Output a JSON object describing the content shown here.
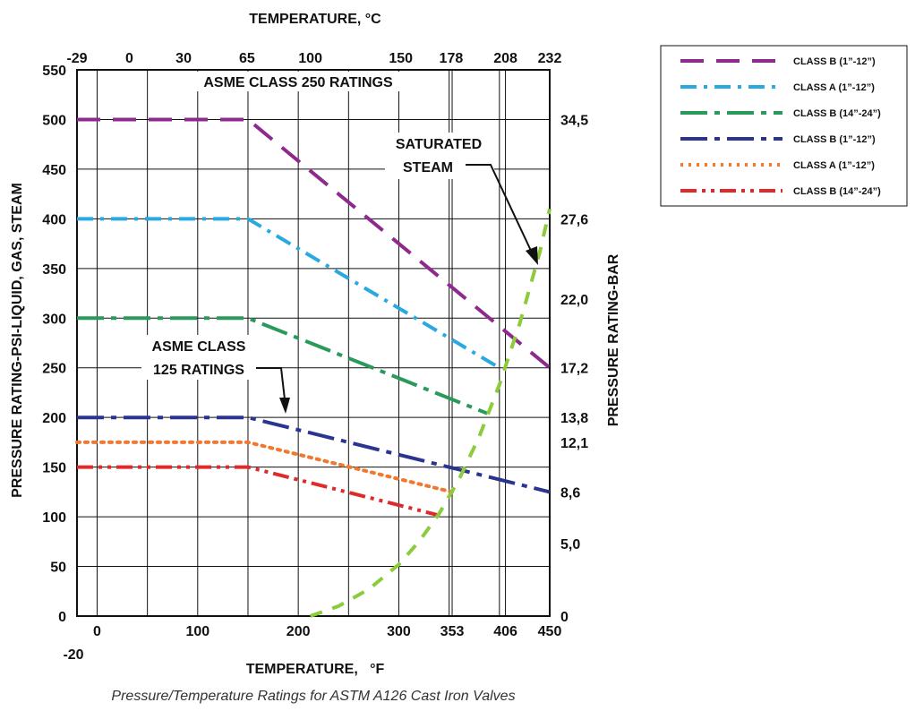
{
  "chart_data": {
    "type": "line",
    "caption": "Pressure/Temperature Ratings for ASTM A126 Cast Iron Valves",
    "xlabel": "TEMPERATURE,   °F",
    "x2label": "TEMPERATURE, °C",
    "ylabel": "PRESSURE RATING-PSI-LIQUID, GAS, STEAM",
    "y2label": "PRESSURE RATING-BAR",
    "xlim": [
      -20,
      450
    ],
    "ylim": [
      0,
      550
    ],
    "x_ticks": [
      0,
      100,
      200,
      300,
      353,
      406,
      450
    ],
    "x_extra_label": "-20",
    "y_ticks": [
      0,
      50,
      100,
      150,
      200,
      250,
      300,
      350,
      400,
      450,
      500,
      550
    ],
    "x2_ticks": [
      {
        "label": "-29",
        "at_f": -20
      },
      {
        "label": "0",
        "at_f": 32
      },
      {
        "label": "30",
        "at_f": 86
      },
      {
        "label": "65",
        "at_f": 149
      },
      {
        "label": "100",
        "at_f": 212
      },
      {
        "label": "150",
        "at_f": 302
      },
      {
        "label": "178",
        "at_f": 352
      },
      {
        "label": "208",
        "at_f": 406
      },
      {
        "label": "232",
        "at_f": 450
      }
    ],
    "y2_ticks": [
      {
        "label": "34,5",
        "at_psi": 500
      },
      {
        "label": "27,6",
        "at_psi": 400
      },
      {
        "label": "22,0",
        "at_psi": 319
      },
      {
        "label": "17,2",
        "at_psi": 250
      },
      {
        "label": "13,8",
        "at_psi": 200
      },
      {
        "label": "12,1",
        "at_psi": 175
      },
      {
        "label": "8,6",
        "at_psi": 125
      },
      {
        "label": "5,0",
        "at_psi": 73
      },
      {
        "label": "0",
        "at_psi": 0
      }
    ],
    "annotations": {
      "class250": "ASME CLASS 250 RATINGS",
      "class125_line1": "ASME CLASS",
      "class125_line2": "125 RATINGS",
      "steam_line1": "SATURATED",
      "steam_line2": "STEAM"
    },
    "series": [
      {
        "name": "CLASS B (1”-12”)",
        "color": "#8e2a8e",
        "dash": "long-dash",
        "x": [
          -20,
          150,
          450
        ],
        "y": [
          500,
          500,
          250
        ]
      },
      {
        "name": "CLASS A (1”-12”)",
        "color": "#2aa8e0",
        "dash": "dash-dot",
        "x": [
          -20,
          150,
          400
        ],
        "y": [
          400,
          400,
          250
        ]
      },
      {
        "name": "CLASS B (14”-24”)",
        "color": "#2a9a5a",
        "dash": "long-dash-dot",
        "x": [
          -20,
          150,
          388
        ],
        "y": [
          300,
          300,
          204
        ]
      },
      {
        "name": "CLASS B (1”-12”)",
        "color": "#2b3590",
        "dash": "long-dash-dot",
        "x": [
          -20,
          150,
          450
        ],
        "y": [
          200,
          200,
          125
        ]
      },
      {
        "name": "CLASS A (1”-12”)",
        "color": "#f07830",
        "dash": "dotted",
        "x": [
          -20,
          150,
          353
        ],
        "y": [
          175,
          175,
          125
        ]
      },
      {
        "name": "CLASS B (14”-24”)",
        "color": "#e02a2a",
        "dash": "dash-dot-dot",
        "x": [
          -20,
          150,
          338
        ],
        "y": [
          150,
          150,
          102
        ]
      },
      {
        "name": "SATURATED STEAM",
        "color": "#8ccc3c",
        "dash": "dash",
        "legend": false,
        "x": [
          212,
          240,
          270,
          300,
          320,
          340,
          360,
          380,
          400,
          420,
          440,
          450
        ],
        "y": [
          0,
          10,
          27,
          52,
          75,
          103,
          138,
          181,
          233,
          294,
          366,
          410
        ]
      }
    ]
  }
}
